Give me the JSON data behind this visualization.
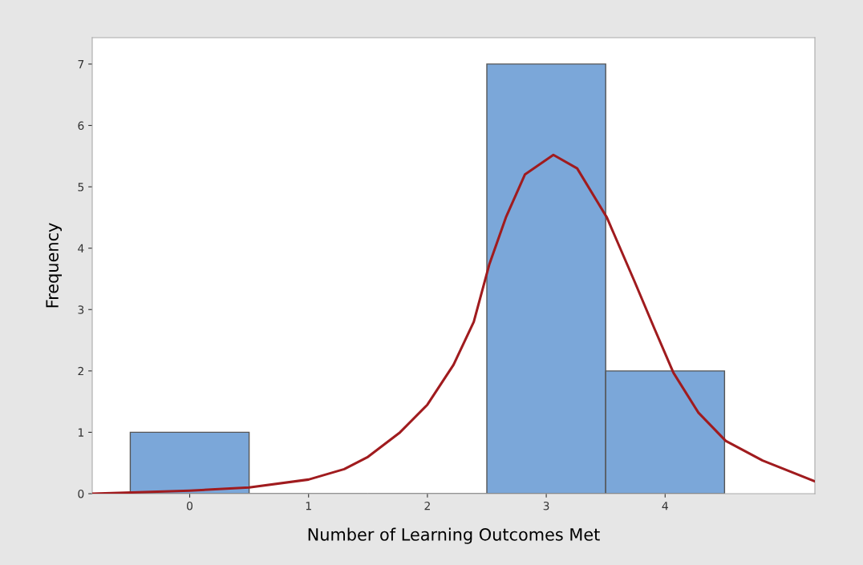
{
  "chart_data": {
    "type": "histogram",
    "xlabel": "Number of Learning Outcomes Met",
    "ylabel": "Frequency",
    "bins": [
      -0.5,
      0.5,
      1.5,
      2.5,
      3.5,
      4.5
    ],
    "values": [
      1,
      0,
      0,
      7,
      2
    ],
    "color": "#7ba7d9",
    "xlim": [
      -0.82,
      5.26
    ],
    "ylim": [
      0,
      7.43
    ],
    "xticks": [
      0,
      1,
      2,
      3,
      4
    ],
    "yticks": [
      0,
      1,
      2,
      3,
      4,
      5,
      6,
      7
    ],
    "grid": false,
    "series": [
      {
        "type": "line",
        "color": "#a01b1e",
        "x": [
          -0.82,
          0,
          0.5,
          1,
          1.3,
          1.5,
          1.77,
          2.0,
          2.22,
          2.39,
          2.52,
          2.66,
          2.82,
          3.06,
          3.26,
          3.51,
          3.74,
          3.91,
          4.07,
          4.28,
          4.51,
          4.82,
          5.26
        ],
        "values": [
          0,
          0.05,
          0.1,
          0.23,
          0.4,
          0.6,
          1.0,
          1.45,
          2.1,
          2.8,
          3.73,
          4.5,
          5.2,
          5.52,
          5.3,
          4.5,
          3.47,
          2.69,
          1.97,
          1.32,
          0.86,
          0.54,
          0.2
        ]
      }
    ]
  }
}
